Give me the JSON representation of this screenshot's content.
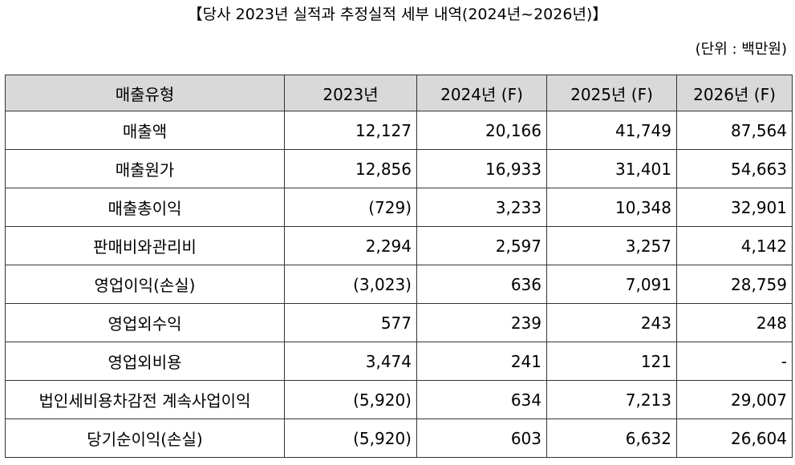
{
  "title": "【당사 2023년 실적과 추정실적 세부 내역(2024년~2026년)】",
  "unit": "(단위 : 백만원)",
  "table": {
    "headers": [
      "매출유형",
      "2023년",
      "2024년 (F)",
      "2025년 (F)",
      "2026년 (F)"
    ],
    "rows": [
      [
        "매출액",
        "12,127",
        "20,166",
        "41,749",
        "87,564"
      ],
      [
        "매출원가",
        "12,856",
        "16,933",
        "31,401",
        "54,663"
      ],
      [
        "매출총이익",
        "(729)",
        "3,233",
        "10,348",
        "32,901"
      ],
      [
        "판매비와관리비",
        "2,294",
        "2,597",
        "3,257",
        "4,142"
      ],
      [
        "영업이익(손실)",
        "(3,023)",
        "636",
        "7,091",
        "28,759"
      ],
      [
        "영업외수익",
        "577",
        "239",
        "243",
        "248"
      ],
      [
        "영업외비용",
        "3,474",
        "241",
        "121",
        "-"
      ],
      [
        "법인세비용차감전 계속사업이익",
        "(5,920)",
        "634",
        "7,213",
        "29,007"
      ],
      [
        "당기순이익(손실)",
        "(5,920)",
        "603",
        "6,632",
        "26,604"
      ]
    ]
  },
  "colors": {
    "header_bg": "#d9d9d9",
    "border": "#333333"
  }
}
